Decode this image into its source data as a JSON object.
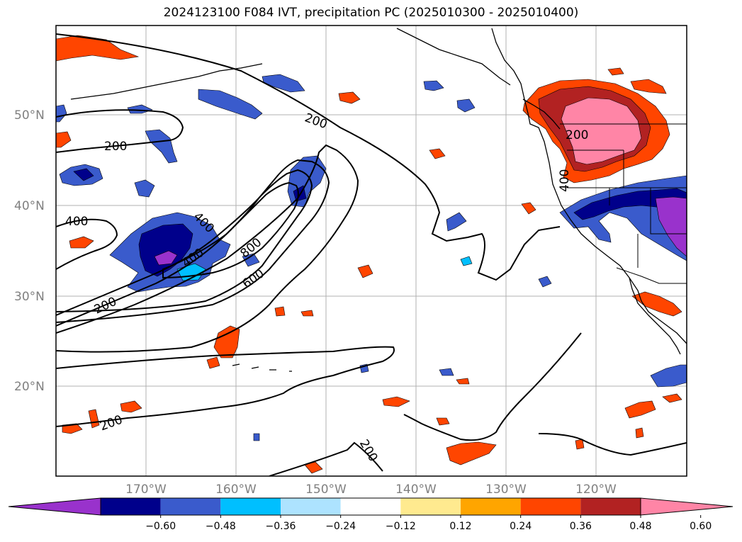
{
  "title": "2024123100 F084 IVT, precipitation PC (2025010300 - 2025010400)",
  "lat_ticks": [
    "50°N",
    "40°N",
    "30°N",
    "20°N"
  ],
  "lon_ticks": [
    "170°W",
    "160°W",
    "150°W",
    "140°W",
    "130°W",
    "120°W"
  ],
  "contour_labels": [
    "200",
    "200",
    "400",
    "400",
    "400",
    "800",
    "600",
    "200",
    "200",
    "200",
    "400",
    "200"
  ],
  "colorbar": {
    "colors": [
      "#9932CC",
      "#00008B",
      "#3A5BCC",
      "#00BFFF",
      "#ADE3FF",
      "#FFFFFF",
      "#FFEA8F",
      "#FFA500",
      "#FF4500",
      "#B22222",
      "#FF85A6"
    ],
    "tick_labels": [
      "−0.60",
      "−0.48",
      "−0.36",
      "−0.24",
      "−0.12",
      "0.12",
      "0.24",
      "0.36",
      "0.48",
      "0.60"
    ]
  }
}
